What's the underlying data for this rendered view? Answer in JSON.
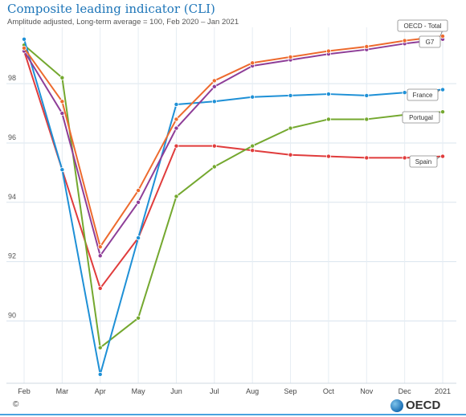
{
  "header": {
    "title": "Composite leading indicator (CLI)",
    "subtitle": "Amplitude adjusted, Long-term average = 100, Feb 2020 – Jan 2021"
  },
  "footer": {
    "copyright": "©",
    "logo_text": "OECD"
  },
  "chart_data": {
    "type": "line",
    "x": [
      "Feb",
      "Mar",
      "Apr",
      "May",
      "Jun",
      "Jul",
      "Aug",
      "Sep",
      "Oct",
      "Nov",
      "Dec",
      "2021"
    ],
    "ylim": [
      87.9,
      99.9
    ],
    "yticks": [
      90,
      92,
      94,
      96,
      98
    ],
    "grid": true,
    "series": [
      {
        "name": "OECD - Total",
        "color": "#ed6a2e",
        "values": [
          99.2,
          97.4,
          92.5,
          94.4,
          96.8,
          98.1,
          98.7,
          98.9,
          99.1,
          99.25,
          99.45,
          99.6
        ]
      },
      {
        "name": "G7",
        "color": "#8e3e98",
        "values": [
          99.1,
          97.0,
          92.2,
          94.0,
          96.5,
          97.9,
          98.6,
          98.8,
          99.0,
          99.15,
          99.35,
          99.5
        ]
      },
      {
        "name": "France",
        "color": "#1e90d6",
        "values": [
          99.5,
          95.1,
          88.2,
          92.8,
          97.3,
          97.4,
          97.55,
          97.6,
          97.65,
          97.6,
          97.7,
          97.8
        ]
      },
      {
        "name": "Portugal",
        "color": "#74a82f",
        "values": [
          99.3,
          98.2,
          89.1,
          90.1,
          94.2,
          95.2,
          95.9,
          96.5,
          96.8,
          96.8,
          96.95,
          97.05
        ]
      },
      {
        "name": "Spain",
        "color": "#e03c3c",
        "values": [
          99.1,
          95.1,
          91.1,
          92.8,
          95.9,
          95.9,
          95.75,
          95.6,
          95.55,
          95.5,
          95.5,
          95.55
        ]
      }
    ]
  }
}
